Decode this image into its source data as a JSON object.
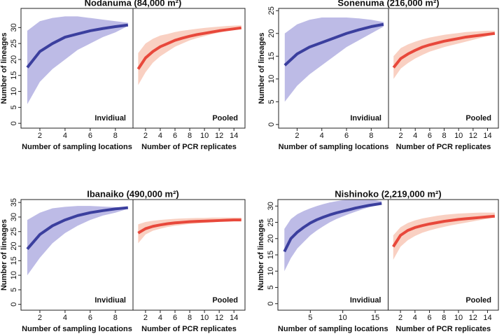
{
  "chart_data": [
    {
      "type": "line",
      "title": "Nodanuma (84,000 m²)",
      "ylabel": "Number of lineages",
      "ylim": [
        -1.5,
        36
      ],
      "yticks": [
        0,
        5,
        10,
        15,
        20,
        25,
        30
      ],
      "panels": [
        {
          "label": "Invidiual",
          "xlabel": "Number of sampling locations",
          "xlim": [
            0.5,
            9.4
          ],
          "xticks": [
            2,
            4,
            6,
            8
          ],
          "color": "#3b3f9e",
          "band_color": "#bdbbe6",
          "x": [
            1,
            2,
            3,
            4,
            5,
            6,
            7,
            8,
            9
          ],
          "values": [
            17.5,
            22.5,
            25,
            27,
            28,
            29,
            29.7,
            30.3,
            30.8
          ],
          "lower": [
            6,
            13,
            17,
            20,
            23,
            25,
            27,
            28.5,
            30.5
          ],
          "upper": [
            29,
            32,
            33,
            33.5,
            33.5,
            33,
            32.5,
            32,
            31.5
          ]
        },
        {
          "label": "Pooled",
          "xlabel": "Number of PCR replicates",
          "xlim": [
            0.3,
            15.5
          ],
          "xticks": [
            2,
            4,
            6,
            8,
            10,
            12,
            14
          ],
          "color": "#e8483b",
          "band_color": "#f9d0c2",
          "x": [
            1,
            2,
            3,
            4,
            5,
            6,
            7,
            8,
            9,
            10,
            11,
            12,
            13,
            14,
            15
          ],
          "values": [
            17,
            20.5,
            22.5,
            24,
            25,
            26,
            26.7,
            27.3,
            27.8,
            28.2,
            28.6,
            29,
            29.3,
            29.6,
            29.9
          ],
          "lower": [
            12,
            16,
            19,
            21,
            22.5,
            24,
            25,
            26,
            26.7,
            27.3,
            27.9,
            28.4,
            28.9,
            29.3,
            29.8
          ],
          "upper": [
            22,
            25,
            26.5,
            27.5,
            28,
            28.6,
            29,
            29.3,
            29.6,
            29.9,
            30.1,
            30.3,
            30.5,
            30.6,
            30.7
          ]
        }
      ]
    },
    {
      "type": "line",
      "title": "Sonenuma (216,000 m²)",
      "ylabel": "Number of lineages",
      "ylim": [
        -0.8,
        25.5
      ],
      "yticks": [
        0,
        5,
        10,
        15,
        20,
        25
      ],
      "panels": [
        {
          "label": "Invidiual",
          "xlabel": "Number of sampling locations",
          "xlim": [
            0.5,
            9.4
          ],
          "xticks": [
            2,
            4,
            6,
            8
          ],
          "color": "#3b3f9e",
          "band_color": "#bdbbe6",
          "x": [
            1,
            2,
            3,
            4,
            5,
            6,
            7,
            8,
            9
          ],
          "values": [
            13,
            15.5,
            17,
            18,
            19,
            20,
            20.8,
            21.5,
            22
          ],
          "lower": [
            5,
            8.5,
            11,
            13,
            15,
            17,
            18.5,
            20,
            21.5
          ],
          "upper": [
            20,
            22,
            23,
            23.5,
            23.5,
            23.5,
            23.3,
            23,
            22.5
          ]
        },
        {
          "label": "Pooled",
          "xlabel": "Number of PCR replicates",
          "xlim": [
            0.3,
            15.5
          ],
          "xticks": [
            2,
            4,
            6,
            8,
            10,
            12,
            14
          ],
          "color": "#e8483b",
          "band_color": "#f9d0c2",
          "x": [
            1,
            2,
            3,
            4,
            5,
            6,
            7,
            8,
            9,
            10,
            11,
            12,
            13,
            14,
            15
          ],
          "values": [
            12.5,
            14.5,
            15.5,
            16.3,
            17,
            17.5,
            17.9,
            18.3,
            18.6,
            18.9,
            19.2,
            19.4,
            19.6,
            19.8,
            20
          ],
          "lower": [
            10,
            12.3,
            13.5,
            14.5,
            15.3,
            16,
            16.5,
            17,
            17.4,
            17.8,
            18.2,
            18.6,
            19,
            19.4,
            19.8
          ],
          "upper": [
            15,
            16.8,
            17.6,
            18.2,
            18.7,
            19.1,
            19.4,
            19.7,
            19.9,
            20.1,
            20.3,
            20.4,
            20.5,
            20.6,
            20.6
          ]
        }
      ]
    },
    {
      "type": "line",
      "title": "Ibanaiko (490,000 m²)",
      "ylabel": "Number of lineages",
      "ylim": [
        -2,
        36
      ],
      "yticks": [
        0,
        5,
        10,
        15,
        20,
        25,
        30,
        35
      ],
      "panels": [
        {
          "label": "Invidiual",
          "xlabel": "Number of sampling locations",
          "xlim": [
            0.5,
            9.4
          ],
          "xticks": [
            2,
            4,
            6,
            8
          ],
          "color": "#3b3f9e",
          "band_color": "#bdbbe6",
          "x": [
            1,
            2,
            3,
            4,
            5,
            6,
            7,
            8,
            9
          ],
          "values": [
            19,
            24,
            27,
            29,
            30.5,
            31.5,
            32.2,
            32.8,
            33.2
          ],
          "lower": [
            10,
            16,
            21,
            24.5,
            27,
            29,
            30.5,
            31.5,
            32.8
          ],
          "upper": [
            29,
            31.5,
            33,
            33.5,
            33.8,
            33.8,
            33.6,
            33.4,
            33.2
          ]
        },
        {
          "label": "Pooled",
          "xlabel": "Number of PCR replicates",
          "xlim": [
            0.3,
            15.5
          ],
          "xticks": [
            2,
            4,
            6,
            8,
            10,
            12,
            14
          ],
          "color": "#e8483b",
          "band_color": "#f9d0c2",
          "x": [
            1,
            2,
            3,
            4,
            5,
            6,
            7,
            8,
            9,
            10,
            11,
            12,
            13,
            14,
            15
          ],
          "values": [
            24.5,
            26,
            26.8,
            27.3,
            27.7,
            28,
            28.2,
            28.4,
            28.5,
            28.6,
            28.7,
            28.8,
            28.9,
            29,
            29
          ],
          "lower": [
            21,
            24,
            25.3,
            26,
            26.6,
            27,
            27.3,
            27.6,
            27.8,
            28,
            28.2,
            28.4,
            28.6,
            28.8,
            29
          ],
          "upper": [
            27.5,
            28.3,
            28.7,
            29,
            29.2,
            29.4,
            29.5,
            29.6,
            29.7,
            29.7,
            29.8,
            29.8,
            29.8,
            29.8,
            29.8
          ]
        }
      ]
    },
    {
      "type": "line",
      "title": "Nishinoko (2,219,000 m²)",
      "ylabel": "Number of lineages",
      "ylim": [
        -2,
        32
      ],
      "yticks": [
        0,
        5,
        10,
        15,
        20,
        25,
        30
      ],
      "panels": [
        {
          "label": "Invidiual",
          "xlabel": "Number of sampling locations",
          "xlim": [
            0,
            17
          ],
          "xticks": [
            5,
            10,
            15
          ],
          "color": "#3b3f9e",
          "band_color": "#bdbbe6",
          "x": [
            1,
            2,
            3,
            4,
            5,
            6,
            7,
            8,
            9,
            10,
            11,
            12,
            13,
            14,
            15,
            16
          ],
          "values": [
            16,
            20,
            22,
            23.5,
            24.8,
            25.8,
            26.6,
            27.3,
            27.9,
            28.4,
            28.9,
            29.4,
            29.8,
            30.2,
            30.5,
            30.8
          ],
          "lower": [
            10,
            14,
            17,
            19,
            21,
            22.5,
            23.8,
            25,
            26,
            26.8,
            27.6,
            28.3,
            29,
            29.6,
            30.1,
            30.7
          ],
          "upper": [
            23,
            26,
            27.5,
            28.5,
            29.3,
            30,
            30.6,
            31.1,
            31.5,
            31.8,
            32,
            32.1,
            32.1,
            32,
            31.8,
            31.5
          ]
        },
        {
          "label": "Pooled",
          "xlabel": "Number of PCR replicates",
          "xlim": [
            0.3,
            15.5
          ],
          "xticks": [
            2,
            4,
            6,
            8,
            10,
            12,
            14
          ],
          "color": "#e8483b",
          "band_color": "#f9d0c2",
          "x": [
            1,
            2,
            3,
            4,
            5,
            6,
            7,
            8,
            9,
            10,
            11,
            12,
            13,
            14,
            15
          ],
          "values": [
            17.5,
            21,
            22.5,
            23.4,
            24,
            24.5,
            24.9,
            25.3,
            25.6,
            25.9,
            26.1,
            26.3,
            26.5,
            26.7,
            26.9
          ],
          "lower": [
            13.5,
            17.5,
            19.5,
            20.8,
            21.8,
            22.5,
            23.1,
            23.6,
            24.1,
            24.5,
            24.9,
            25.3,
            25.7,
            26.1,
            26.6
          ],
          "upper": [
            21,
            23.5,
            24.8,
            25.6,
            26.2,
            26.6,
            27,
            27.3,
            27.5,
            27.7,
            27.8,
            27.9,
            28,
            28,
            28
          ]
        }
      ]
    }
  ]
}
